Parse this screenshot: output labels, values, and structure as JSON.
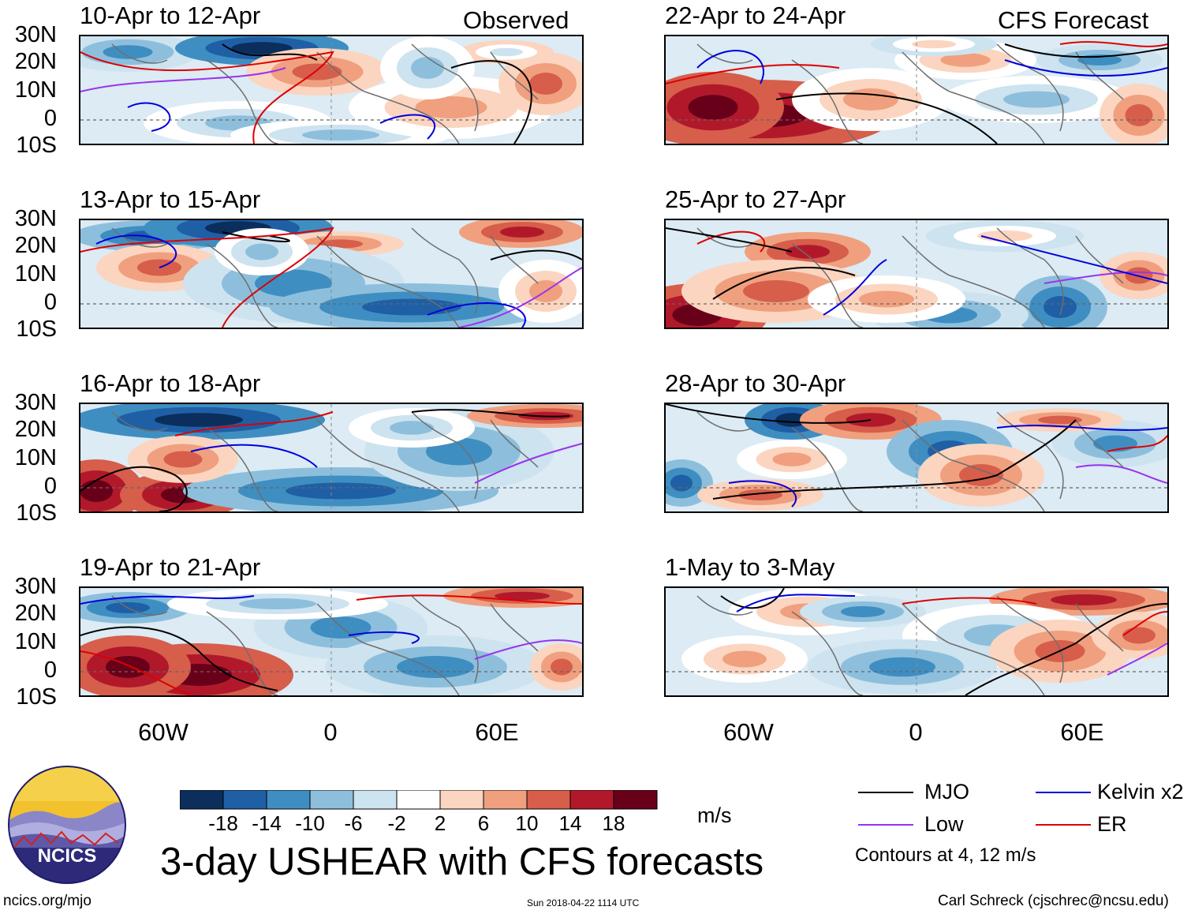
{
  "columns": {
    "left_label": "Observed",
    "right_label": "CFS Forecast"
  },
  "latitudes": [
    "30N",
    "20N",
    "10N",
    "0",
    "10S"
  ],
  "longitudes": [
    "60W",
    "0",
    "60E"
  ],
  "panels_left": [
    {
      "title": "10-Apr to 12-Apr"
    },
    {
      "title": "13-Apr to 15-Apr"
    },
    {
      "title": "16-Apr to 18-Apr"
    },
    {
      "title": "19-Apr to 21-Apr"
    }
  ],
  "panels_right": [
    {
      "title": "22-Apr to 24-Apr"
    },
    {
      "title": "25-Apr to 27-Apr"
    },
    {
      "title": "28-Apr to 30-Apr"
    },
    {
      "title": "1-May to 3-May"
    }
  ],
  "colorbar": {
    "labels": [
      "-18",
      "-14",
      "-10",
      "-6",
      "-2",
      "2",
      "6",
      "10",
      "14",
      "18"
    ],
    "colors": [
      "#0b2e5c",
      "#1f5fa6",
      "#3f8ec2",
      "#8dbfdd",
      "#cde3ef",
      "#ffffff",
      "#fbd5c0",
      "#f0a07e",
      "#d65e4b",
      "#b1192b",
      "#690019"
    ],
    "units": "m/s"
  },
  "legend": {
    "items": [
      {
        "label": "MJO",
        "color": "#000000"
      },
      {
        "label": "Kelvin x2",
        "color": "#0000dd"
      },
      {
        "label": "Low",
        "color": "#9933ee"
      },
      {
        "label": "ER",
        "color": "#dd0000"
      }
    ],
    "note": "Contours at 4, 12 m/s"
  },
  "logo": {
    "text": "NCICS"
  },
  "title": "3-day USHEAR with CFS forecasts",
  "footer": {
    "url": "ncics.org/mjo",
    "timestamp": "Sun 2018-04-22 1114 UTC",
    "author": "Carl Schreck (cjschrec@ncsu.edu)"
  }
}
